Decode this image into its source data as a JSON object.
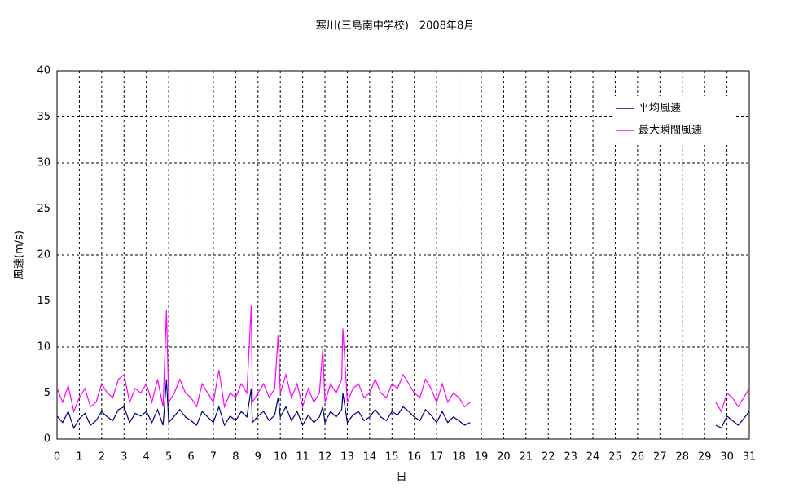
{
  "chart_data": {
    "type": "line",
    "title": "寒川(三島南中学校)　2008年8月",
    "x_label": "日",
    "y_label": "風速(m/s)",
    "x": [
      0,
      0.25,
      0.5,
      0.75,
      1,
      1.25,
      1.5,
      1.75,
      2,
      2.25,
      2.5,
      2.75,
      3,
      3.25,
      3.5,
      3.75,
      4,
      4.25,
      4.5,
      4.75,
      4.9,
      5,
      5.25,
      5.5,
      5.75,
      6,
      6.25,
      6.5,
      6.75,
      7,
      7.25,
      7.5,
      7.75,
      8,
      8.25,
      8.5,
      8.7,
      8.75,
      9,
      9.25,
      9.5,
      9.75,
      9.9,
      10,
      10.25,
      10.5,
      10.75,
      11,
      11.25,
      11.5,
      11.75,
      11.9,
      12,
      12.25,
      12.5,
      12.75,
      12.8,
      13,
      13.25,
      13.5,
      13.75,
      14,
      14.25,
      14.5,
      14.75,
      15,
      15.25,
      15.5,
      15.75,
      16,
      16.25,
      16.5,
      16.75,
      17,
      17.25,
      17.5,
      17.75,
      18,
      18.25,
      18.5,
      24,
      29.5,
      29.75,
      30,
      30.25,
      30.5,
      30.75,
      31
    ],
    "series": [
      {
        "name": "平均風速",
        "color": "#000080",
        "values": [
          2.5,
          1.8,
          3,
          1.2,
          2.2,
          2.8,
          1.5,
          2,
          3,
          2.4,
          2,
          3.2,
          3.5,
          1.8,
          2.8,
          2.5,
          3,
          1.8,
          3.2,
          1.5,
          6.5,
          1.8,
          2.5,
          3.2,
          2.4,
          2,
          1.5,
          3,
          2.4,
          1.8,
          3.5,
          1.5,
          2.5,
          2,
          3,
          2.4,
          5.5,
          1.8,
          2.5,
          3,
          2,
          2.6,
          4.5,
          2.4,
          3.5,
          2,
          3,
          1.5,
          2.6,
          1.8,
          2.4,
          3.5,
          1.8,
          3,
          2.4,
          3.2,
          5,
          1.8,
          2.6,
          3,
          2,
          2.4,
          3.2,
          2.4,
          2,
          3,
          2.6,
          3.5,
          3,
          2.4,
          2,
          3.2,
          2.6,
          1.8,
          3,
          1.8,
          2.4,
          2,
          1.5,
          1.8,
          null,
          1.5,
          1.2,
          2.5,
          2,
          1.5,
          2.2,
          3
        ]
      },
      {
        "name": "最大瞬間風速",
        "color": "#ff00ff",
        "values": [
          5.5,
          4,
          5.8,
          3,
          4.5,
          5.5,
          3.5,
          4,
          6,
          5,
          4.5,
          6.5,
          7,
          4,
          5.5,
          5,
          6,
          4,
          6.5,
          3.5,
          14,
          4,
          5,
          6.5,
          5,
          4.5,
          3.5,
          6,
          5,
          4,
          7.5,
          3.5,
          5,
          4.5,
          6,
          5,
          14.5,
          4,
          5,
          6,
          4.5,
          5.5,
          11.3,
          5,
          7,
          4.5,
          6,
          3.5,
          5.5,
          4,
          5,
          9.8,
          4,
          6,
          5,
          6.5,
          12,
          4,
          5.5,
          6,
          4.5,
          5,
          6.5,
          5,
          4.5,
          6,
          5.5,
          7,
          6,
          5,
          4.5,
          6.5,
          5.5,
          4,
          6,
          4,
          5,
          4.5,
          3.5,
          4,
          null,
          4,
          3,
          5,
          4.5,
          3.5,
          4.5,
          5.5
        ]
      }
    ],
    "xlim": [
      0,
      31
    ],
    "xticks": [
      0,
      1,
      2,
      3,
      4,
      5,
      6,
      7,
      8,
      9,
      10,
      11,
      12,
      13,
      14,
      15,
      16,
      17,
      18,
      19,
      20,
      21,
      22,
      23,
      24,
      25,
      26,
      27,
      28,
      29,
      30,
      31
    ],
    "ylim": [
      0,
      40
    ],
    "yticks": [
      0,
      5,
      10,
      15,
      20,
      25,
      30,
      35,
      40
    ],
    "grid": true,
    "legend": "upper right"
  }
}
